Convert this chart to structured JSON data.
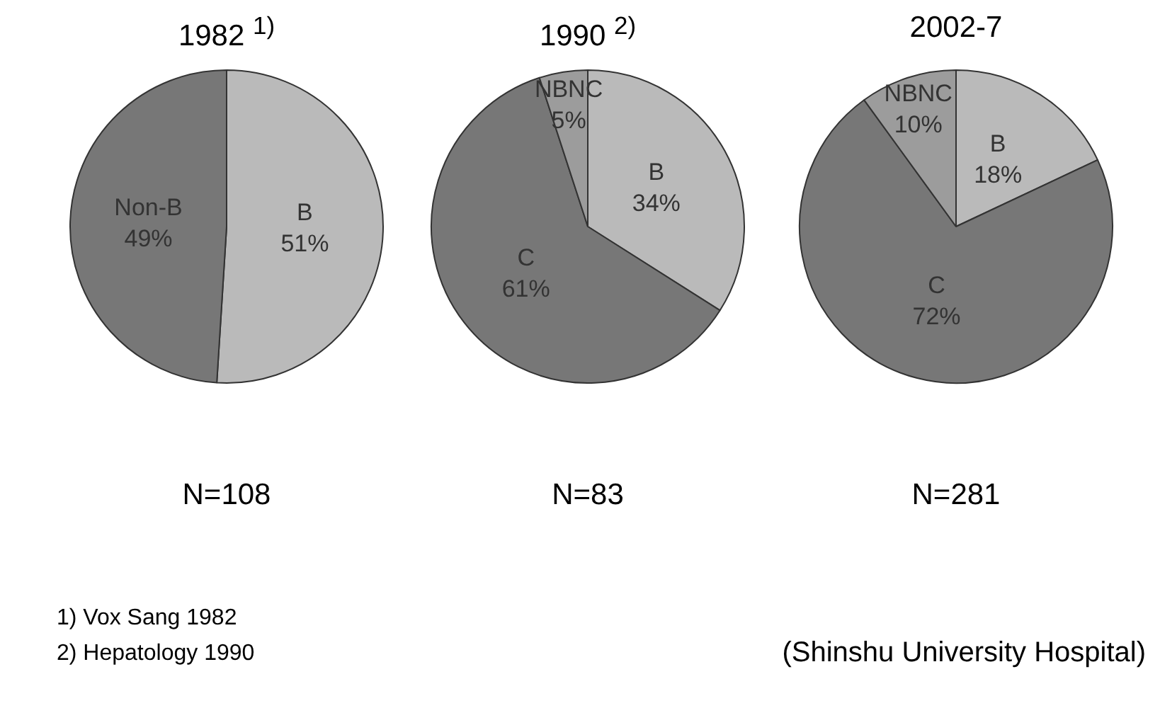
{
  "chart_data": [
    {
      "type": "pie",
      "title": "1982 $^{1)}$",
      "categories": [
        "B",
        "Non-B"
      ],
      "values": [
        51,
        49
      ],
      "value_labels": [
        "51%",
        "49%"
      ],
      "colors": [
        "#bababa",
        "#777777"
      ],
      "annotations": [
        "N=108",
        "1)  Vox Sang 1982",
        "2)  Hepatology 1990"
      ]
    },
    {
      "type": "pie",
      "title": "1990 $^{2)}$",
      "categories": [
        "B",
        "C",
        "NBNC"
      ],
      "values": [
        34,
        61,
        5
      ],
      "value_labels": [
        "34%",
        "61%",
        "5%"
      ],
      "colors": [
        "#bababa",
        "#777777",
        "#9c9c9c"
      ],
      "annotations": [
        "N=83"
      ]
    },
    {
      "type": "pie",
      "title": "2002-7",
      "categories": [
        "B",
        "C",
        "NBNC"
      ],
      "values": [
        18,
        72,
        10
      ],
      "value_labels": [
        "18%",
        "72%",
        "10%"
      ],
      "colors": [
        "#bababa",
        "#777777",
        "#9c9c9c"
      ],
      "annotations": [
        "N=281",
        "(Shinshu University Hospital)"
      ]
    }
  ]
}
